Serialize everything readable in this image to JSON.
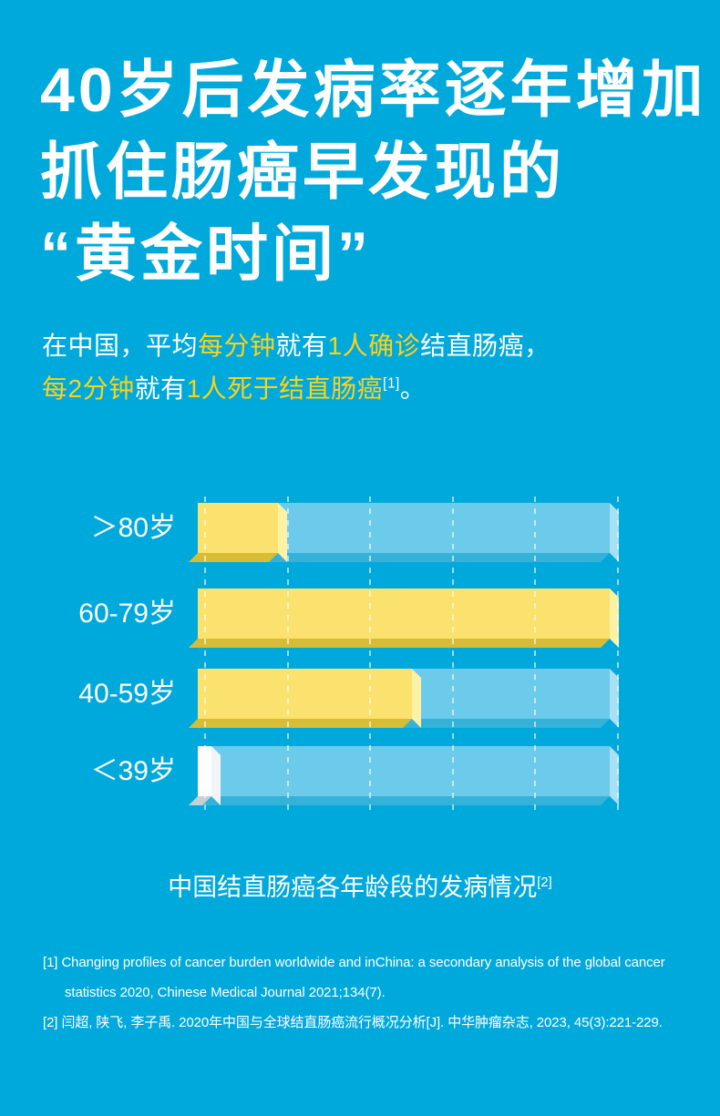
{
  "colors": {
    "bg": "#00a9dc",
    "text-white": "#ffffff",
    "accent-yellow": "#fad318",
    "bar-yellow": "#fbe26e",
    "bar-yellow-dark": "#d7bd35",
    "bar-yellow-light": "#fdf1a4",
    "bar-track": "#6ccbea",
    "bar-track-dark": "#35b2d9",
    "bar-track-light": "#a8e0f4",
    "bar-white": "#ffffff",
    "bar-white-dark": "#c9cfd4",
    "bar-white-light": "#f2f4f5",
    "grid-line": "rgba(255,255,255,0.6)"
  },
  "title": {
    "lines": [
      "40岁后发病率逐年增加",
      "抓住肠癌早发现的",
      "“黄金时间”"
    ]
  },
  "intro": {
    "line1": {
      "segments": [
        {
          "text": "在中国，平均",
          "highlight": false
        },
        {
          "text": "每分钟",
          "highlight": true
        },
        {
          "text": "就有",
          "highlight": false
        },
        {
          "text": "1人确诊",
          "highlight": true
        },
        {
          "text": "结直肠癌，",
          "highlight": false
        }
      ]
    },
    "line2": {
      "segments": [
        {
          "text": "每2分钟",
          "highlight": true
        },
        {
          "text": "就有",
          "highlight": false
        },
        {
          "text": "1人死于结直肠癌",
          "highlight": true
        },
        {
          "text": "[1]",
          "highlight": false,
          "sup": true
        },
        {
          "text": "。",
          "highlight": false
        }
      ]
    }
  },
  "chart_data": {
    "type": "bar",
    "orientation": "horizontal",
    "title": "中国结直肠癌各年龄段的发病情况",
    "title_ref_mark": "[2]",
    "categories": [
      "＞80岁",
      "60-79岁",
      "40-59岁",
      "＜39岁"
    ],
    "values_percent_of_max": [
      19.5,
      100,
      52,
      3.3
    ],
    "bar_styles": [
      "yellow",
      "yellow",
      "yellow",
      "white"
    ],
    "value_labels_shown": false,
    "axis_ticks_shown": false,
    "gridline_count": 6,
    "gridline_style": "dashed",
    "legend_position": "none"
  },
  "caption": {
    "text": "中国结直肠癌各年龄段的发病情况",
    "ref_mark": "[2]"
  },
  "references": {
    "lines": [
      {
        "text": "[1] Changing profiles of cancer burden worldwide and inChina: a secondary analysis of the global cancer",
        "indent": false
      },
      {
        "text": "statistics 2020, Chinese Medical Journal 2021;134(7).",
        "indent": true
      },
      {
        "text": "[2] 闫超, 陕飞, 李子禹. 2020年中国与全球结直肠癌流行概况分析[J]. 中华肿瘤杂志, 2023, 45(3):221-229.",
        "indent": false
      }
    ]
  }
}
